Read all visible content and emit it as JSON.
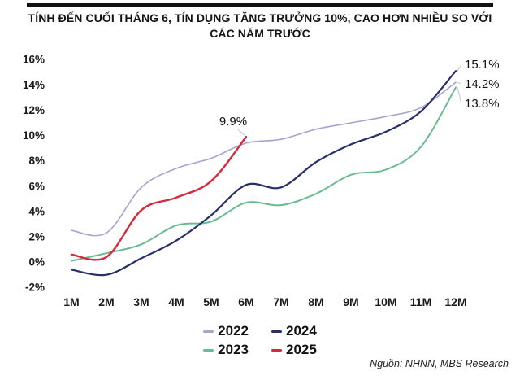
{
  "header": {
    "title": "TÍNH ĐẾN CUỐI THÁNG 6, TÍN DỤNG TĂNG TRƯỞNG 10%, CAO HƠN NHIỀU SO VỚI CÁC NĂM TRƯỚC"
  },
  "source": {
    "label": "Nguồn: NHNN, MBS Research"
  },
  "legend": {
    "items": [
      {
        "label": "2022",
        "series": "2022"
      },
      {
        "label": "2024",
        "series": "2024"
      },
      {
        "label": "2023",
        "series": "2023"
      },
      {
        "label": "2025",
        "series": "2025"
      }
    ]
  },
  "chart_data": {
    "type": "line",
    "title": "TÍNH ĐẾN CUỐI THÁNG 6, TÍN DỤNG TĂNG TRƯỞNG 10%, CAO HƠN NHIỀU SO VỚI CÁC NĂM TRƯỚC",
    "xlabel": "",
    "ylabel": "",
    "x": [
      "1M",
      "2M",
      "3M",
      "4M",
      "5M",
      "6M",
      "7M",
      "8M",
      "9M",
      "10M",
      "11M",
      "12M"
    ],
    "ylim": [
      -2,
      16
    ],
    "grid": false,
    "legend_position": "bottom",
    "y_ticks": {
      "labels": [
        "16%",
        "14%",
        "12%",
        "10%",
        "8%",
        "6%",
        "4%",
        "2%",
        "0%",
        "-2%"
      ],
      "values": [
        16,
        14,
        12,
        10,
        8,
        6,
        4,
        2,
        0,
        -2
      ]
    },
    "series": [
      {
        "name": "2022",
        "color": "#a8a1d2",
        "values": [
          2.5,
          2.3,
          5.9,
          7.4,
          8.2,
          9.4,
          9.7,
          10.5,
          11.0,
          11.5,
          12.2,
          14.2
        ]
      },
      {
        "name": "2023",
        "color": "#6abb92",
        "values": [
          0.1,
          0.7,
          1.4,
          2.9,
          3.2,
          4.7,
          4.5,
          5.4,
          6.9,
          7.3,
          9.1,
          13.8
        ]
      },
      {
        "name": "2024",
        "color": "#272f68",
        "values": [
          -0.6,
          -1.0,
          0.3,
          1.7,
          3.7,
          6.1,
          5.9,
          7.9,
          9.3,
          10.3,
          11.9,
          15.1
        ]
      },
      {
        "name": "2025",
        "color": "#d6293a",
        "values": [
          0.6,
          0.4,
          4.1,
          5.1,
          6.4,
          9.9
        ]
      }
    ],
    "annotations": {
      "mid": {
        "text": "9.9%",
        "series": "2025"
      },
      "end": [
        {
          "text": "15.1%",
          "series": "2024"
        },
        {
          "text": "14.2%",
          "series": "2022"
        },
        {
          "text": "13.8%",
          "series": "2023"
        }
      ]
    }
  }
}
